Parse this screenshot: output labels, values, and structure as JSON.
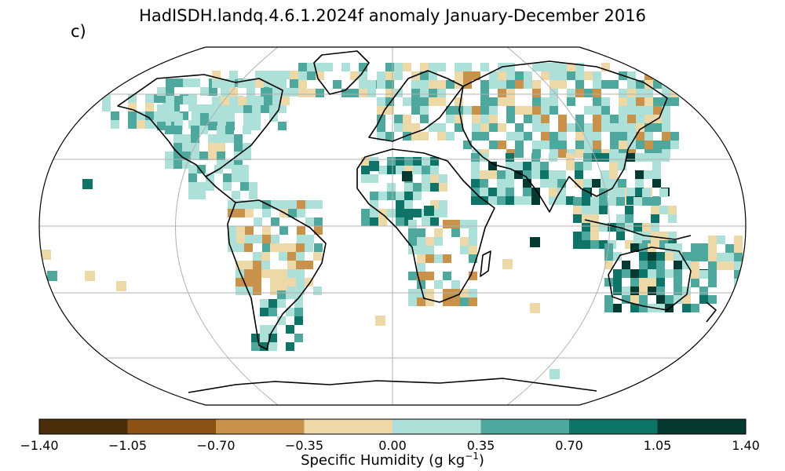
{
  "title": "HadISDH.landq.4.6.1.2024f anomaly January-December 2016",
  "panel_label": "c)",
  "colorbar": {
    "label_text": "Specific Humidity (g kg",
    "label_exp": "−1",
    "label_close": ")",
    "ticks": [
      "−1.40",
      "−1.05",
      "−0.70",
      "−0.35",
      "0.00",
      "0.35",
      "0.70",
      "1.05",
      "1.40"
    ],
    "colors": [
      "#4b2e0a",
      "#8b5214",
      "#c8924a",
      "#ecd9a7",
      "#ade0d9",
      "#4ea89d",
      "#0f7468",
      "#053a32"
    ]
  },
  "map": {
    "projection": "Robinson",
    "gridlines": true,
    "coastlines": true,
    "land_fill": "none",
    "ocean_fill": "none"
  }
}
